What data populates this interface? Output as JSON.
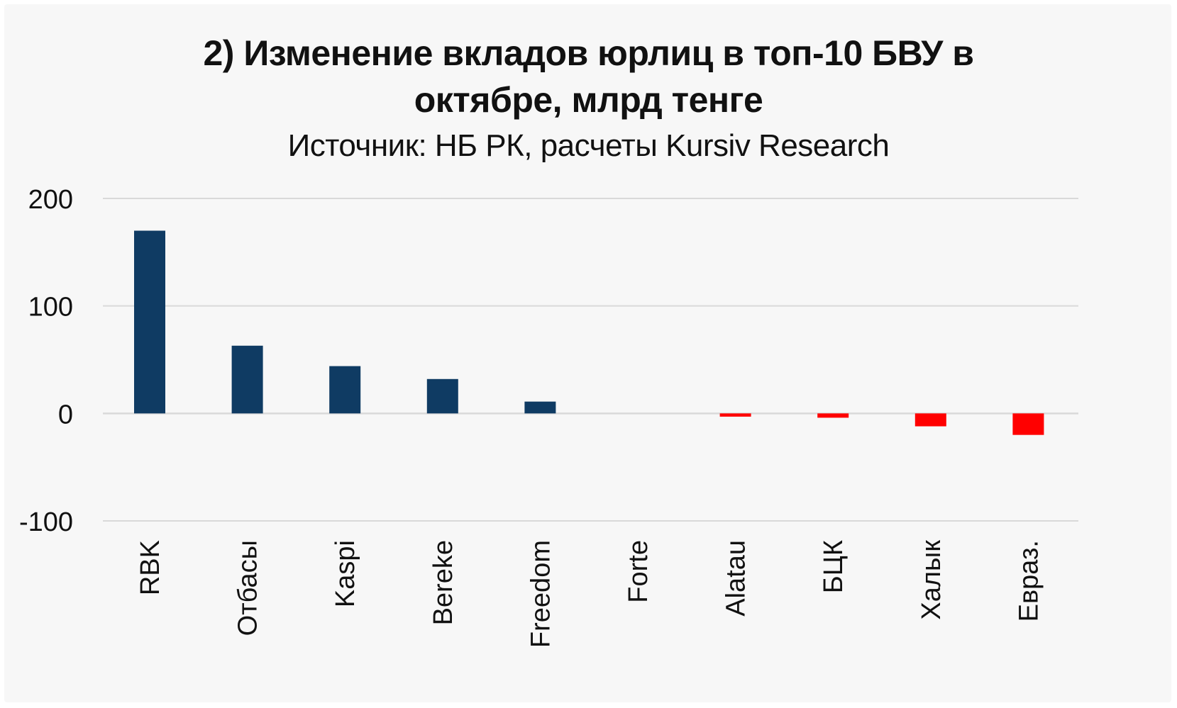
{
  "colors": {
    "positive": "#0f3b63",
    "negative": "#ff0000",
    "grid": "#d9d9d9",
    "background": "#f7f7f7",
    "text": "#111111"
  },
  "chart_data": {
    "type": "bar",
    "title": "2) Изменение вкладов юрлиц в топ-10 БВУ в октябре, млрд тенге",
    "subtitle": "Источник: НБ РК, расчеты Kursiv Research",
    "categories": [
      "RBK",
      "Отбасы",
      "Kaspi",
      "Bereke",
      "Freedom",
      "Forte",
      "Alatau",
      "БЦК",
      "Халык",
      "Евраз."
    ],
    "values": [
      170,
      63,
      44,
      32,
      11,
      0,
      -3,
      -4,
      -12,
      -20
    ],
    "ylim": [
      -100,
      200
    ],
    "yticks": [
      "200",
      "100",
      "0",
      "-100"
    ],
    "grid": true,
    "xlabel": "",
    "ylabel": ""
  }
}
